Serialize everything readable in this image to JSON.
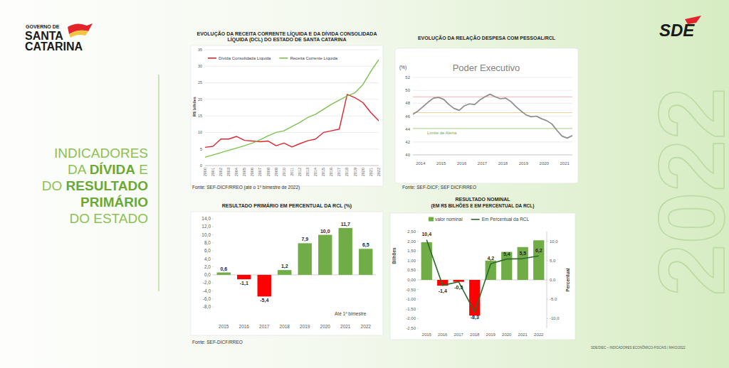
{
  "page": {
    "logo": {
      "line1": "GOVERNO DE",
      "line2": "SANTA",
      "line3": "CATARINA"
    },
    "headline": [
      [
        {
          "text": "INDICADORES"
        }
      ],
      [
        {
          "text": "DA "
        },
        {
          "text": "DÍVIDA",
          "bold": true
        },
        {
          "text": " E"
        }
      ],
      [
        {
          "text": "DO "
        },
        {
          "text": "RESULTADO",
          "bold": true
        }
      ],
      [
        {
          "text": "PRIMÁRIO",
          "bold": true
        }
      ],
      [
        {
          "text": "DO ESTADO"
        }
      ]
    ],
    "brand": "SDE",
    "year": "2022",
    "footer": "SDE/DIEC – INDICADORES ECONÔMICO-FISCAIS | MAIO/2022"
  },
  "chart_data": [
    {
      "type": "line",
      "title": "EVOLUÇÃO DA RECEITA CORRENTE LÍQUIDA E DA DÍVIDA CONSOLIDADA LÍQUIDA (DCL) DO ESTADO DE SANTA CATARINA",
      "y_label": "R$ bilhões",
      "source": "Fonte: SEF-DICF/RREO (até o 1º bimestre de 2022)",
      "categories": [
        "2000",
        "2001",
        "2002",
        "2003",
        "2004",
        "2005",
        "2006",
        "2007",
        "2008",
        "2009",
        "2010",
        "2011",
        "2012",
        "2013",
        "2014",
        "2015",
        "2016",
        "2017",
        "2018",
        "2019",
        "2020",
        "2021",
        "2022"
      ],
      "series": [
        {
          "name": "Dívida Consolidada Líquida",
          "color": "#e3242b",
          "values": [
            5.5,
            5.8,
            8.0,
            8.0,
            8.8,
            7.6,
            7.4,
            7.2,
            7.4,
            6.0,
            6.8,
            5.6,
            6.6,
            7.5,
            8.0,
            10.0,
            10.5,
            11.0,
            21.5,
            20.5,
            19.0,
            16.0,
            13.5
          ]
        },
        {
          "name": "Receita Corrente Líquida",
          "color": "#7cc24e",
          "values": [
            2.5,
            3.2,
            3.9,
            4.6,
            5.3,
            6.0,
            6.8,
            7.8,
            9.0,
            10.0,
            10.5,
            11.8,
            13.0,
            14.5,
            15.5,
            17.0,
            18.5,
            19.8,
            21.0,
            22.0,
            24.5,
            28.5,
            32.0
          ]
        }
      ],
      "ylim": [
        0,
        35
      ],
      "yticks": [
        0,
        5,
        10,
        15,
        20,
        25,
        30,
        35
      ],
      "grid": true,
      "legend": "top-left"
    },
    {
      "type": "line",
      "title": "EVOLUÇÃO DA RELAÇÃO DESPESA COM PESSOAL/RCL",
      "subtitle": "Poder Executivo",
      "y_label": "(%)",
      "source": "Fonte: SEF-DICF; SEF DICF/RREO",
      "categories": [
        "2014",
        null,
        null,
        null,
        "2015",
        null,
        null,
        null,
        "2016",
        null,
        null,
        null,
        "2017",
        null,
        null,
        null,
        "2018",
        null,
        null,
        null,
        "2019",
        null,
        null,
        null,
        "2020",
        null,
        null,
        null,
        "2021",
        null,
        null,
        null
      ],
      "series": [
        {
          "color": "#8c8c8c",
          "values": [
            46.3,
            46.8,
            47.5,
            48.2,
            48.8,
            48.9,
            48.6,
            47.8,
            47.2,
            46.9,
            47.6,
            47.9,
            47.8,
            48.5,
            49.0,
            49.4,
            49.0,
            48.7,
            48.8,
            48.3,
            47.5,
            46.8,
            46.2,
            45.9,
            46.0,
            45.6,
            45.3,
            44.8,
            43.8,
            42.9,
            42.6,
            43.0
          ]
        }
      ],
      "reference_lines": [
        {
          "value": 49,
          "color": "#f2b0b0"
        },
        {
          "value": 46.55,
          "color": "#f5cf96"
        },
        {
          "value": 44.1,
          "color": "#b5d88c",
          "label": "Limite de Alerta"
        }
      ],
      "ylim": [
        40,
        52
      ],
      "yticks": [
        40,
        42,
        44,
        46,
        48,
        50,
        52
      ],
      "grid": true
    },
    {
      "type": "bar",
      "title": "RESULTADO PRIMÁRIO EM PERCENTUAL DA RCL (%)",
      "source": "Fonte: SEF-DICF/RREO",
      "annotation": "Até 1º bimestre",
      "categories": [
        "2015",
        "2016",
        "2017",
        "2018",
        "2019",
        "2020",
        "2021",
        "2022"
      ],
      "series": [
        {
          "values": [
            0.6,
            -1.1,
            -5.4,
            1.2,
            7.9,
            10.0,
            11.7,
            6.5
          ],
          "value_labels": [
            "0,6",
            "-1,1",
            "-5,4",
            "1,2",
            "7,9",
            "10,0",
            "11,7",
            "6,5"
          ],
          "colors": [
            "#70ad47",
            "#ff0000",
            "#ff0000",
            "#70ad47",
            "#70ad47",
            "#70ad47",
            "#70ad47",
            "#70ad47"
          ]
        }
      ],
      "data_labels": true,
      "ylim": [
        -8,
        14
      ],
      "yticks": [
        {
          "value": -8,
          "label": "-8,0"
        },
        {
          "value": -6,
          "label": "-6,0"
        },
        {
          "value": -4,
          "label": "-4,0"
        },
        {
          "value": -2,
          "label": "-2,0"
        },
        {
          "value": 0,
          "label": "0,0"
        },
        {
          "value": 2,
          "label": "2,0"
        },
        {
          "value": 4,
          "label": "4,0"
        },
        {
          "value": 6,
          "label": "6,0"
        },
        {
          "value": 8,
          "label": "8,0"
        },
        {
          "value": 10,
          "label": "10,0"
        },
        {
          "value": 12,
          "label": "12,0"
        },
        {
          "value": 14,
          "label": "14,0"
        }
      ],
      "grid": false
    },
    {
      "type": "bar",
      "title": "RESULTADO NOMINAL",
      "subtitle": "(EM R$ BILHÕES E EM PERCENTUAL DA RCL)",
      "y_label": "Bilhões",
      "y2_label": "Percentual",
      "categories": [
        "2015",
        "2016",
        "2017",
        "2018",
        "2019",
        "2020",
        "2021",
        "2022"
      ],
      "series": [
        {
          "name": "valor nominal",
          "type": "bar",
          "color": "#70ad47",
          "colors": [
            "#70ad47",
            "#ff0000",
            "#ff0000",
            "#ff0000",
            "#70ad47",
            "#70ad47",
            "#70ad47",
            "#70ad47"
          ],
          "values": [
            1.95,
            -0.3,
            -0.1,
            -1.85,
            1.0,
            1.45,
            1.7,
            2.05
          ]
        },
        {
          "name": "Em Percentual da RCL",
          "type": "line",
          "axis": "y2",
          "color": "#2d6a2d",
          "values": [
            10.4,
            -1.4,
            -0.5,
            -8.3,
            4.2,
            5.4,
            5.5,
            6.2
          ],
          "value_labels": [
            "10,4",
            "-1,4",
            "-0,5",
            "-8,3",
            "4,2",
            "5,4",
            "5,5",
            "6,2"
          ]
        }
      ],
      "data_labels": true,
      "legend": "top",
      "grid": false,
      "ylim": [
        -2.5,
        2.5
      ],
      "yticks": [
        {
          "value": -2.5,
          "label": "-2,50"
        },
        {
          "value": -2,
          "label": "-2,00"
        },
        {
          "value": -1.5,
          "label": "-1,50"
        },
        {
          "value": -1,
          "label": "-1,00"
        },
        {
          "value": -0.5,
          "label": "-0,50"
        },
        {
          "value": 0,
          "label": "0,00"
        },
        {
          "value": 0.5,
          "label": "0,50"
        },
        {
          "value": 1,
          "label": "1,00"
        },
        {
          "value": 1.5,
          "label": "1,50"
        },
        {
          "value": 2,
          "label": "2,00"
        },
        {
          "value": 2.5,
          "label": "2,50"
        }
      ],
      "y2lim": [
        -12.5,
        12.5
      ],
      "y2ticks": [
        {
          "value": -10,
          "label": "-10,0"
        },
        {
          "value": -5,
          "label": "-5,0"
        },
        {
          "value": 0,
          "label": "0,0"
        },
        {
          "value": 5,
          "label": "5,0"
        },
        {
          "value": 10,
          "label": "10,0"
        }
      ]
    }
  ]
}
